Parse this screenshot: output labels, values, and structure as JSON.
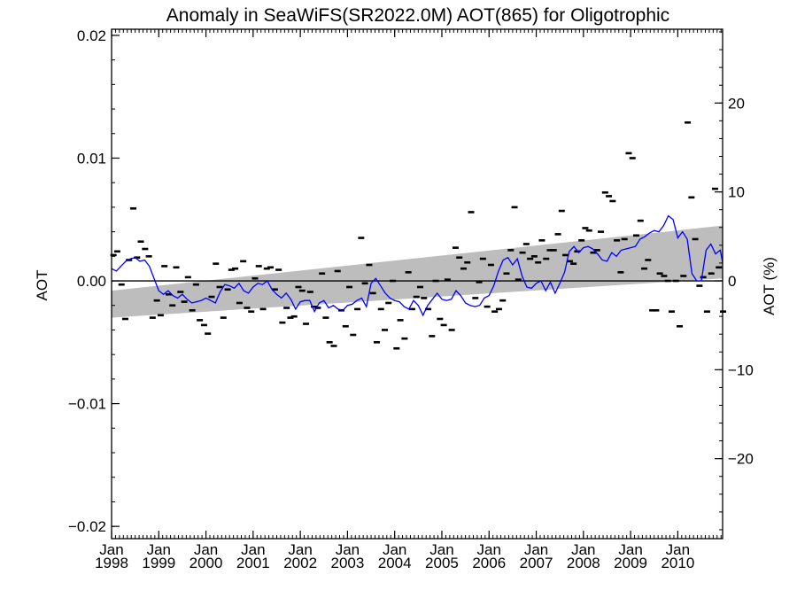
{
  "chart_data": {
    "type": "scatter",
    "title": "Anomaly in SeaWiFS(SR2022.0M) AOT(865) for Oligotrophic",
    "ylabel": "AOT",
    "y2label": "AOT (%)",
    "xlim": [
      1998.0,
      2010.95
    ],
    "ylim": [
      -0.021,
      0.0205
    ],
    "y2lim": [
      -29,
      28.3
    ],
    "x_ticks": [
      {
        "x": 1998,
        "month": "Jan",
        "year": "1998"
      },
      {
        "x": 1999,
        "month": "Jan",
        "year": "1999"
      },
      {
        "x": 2000,
        "month": "Jan",
        "year": "2000"
      },
      {
        "x": 2001,
        "month": "Jan",
        "year": "2001"
      },
      {
        "x": 2002,
        "month": "Jan",
        "year": "2002"
      },
      {
        "x": 2003,
        "month": "Jan",
        "year": "2003"
      },
      {
        "x": 2004,
        "month": "Jan",
        "year": "2004"
      },
      {
        "x": 2005,
        "month": "Jan",
        "year": "2005"
      },
      {
        "x": 2006,
        "month": "Jan",
        "year": "2006"
      },
      {
        "x": 2007,
        "month": "Jan",
        "year": "2007"
      },
      {
        "x": 2008,
        "month": "Jan",
        "year": "2008"
      },
      {
        "x": 2009,
        "month": "Jan",
        "year": "2009"
      },
      {
        "x": 2010,
        "month": "Jan",
        "year": "2010"
      }
    ],
    "y_ticks": [
      {
        "v": 0.02,
        "label": "0.02"
      },
      {
        "v": 0.01,
        "label": "0.01"
      },
      {
        "v": 0.0,
        "label": "0.00"
      },
      {
        "v": -0.01,
        "label": "−0.01"
      },
      {
        "v": -0.02,
        "label": "−0.02"
      }
    ],
    "y2_ticks": [
      {
        "v": 20,
        "label": "20"
      },
      {
        "v": 10,
        "label": "10"
      },
      {
        "v": 0,
        "label": "0"
      },
      {
        "v": -10,
        "label": "−10"
      },
      {
        "v": -20,
        "label": "−20"
      }
    ],
    "trend_band": {
      "x": [
        1998.0,
        2010.95
      ],
      "upper": [
        -0.0008,
        0.0045
      ],
      "lower": [
        -0.003,
        0.0002
      ]
    },
    "zero_line": 0.0,
    "points": [
      [
        1998.04,
        0.0021
      ],
      [
        1998.12,
        0.0024
      ],
      [
        1998.21,
        -0.0003
      ],
      [
        1998.29,
        -0.0031
      ],
      [
        1998.37,
        0.0017
      ],
      [
        1998.46,
        0.0059
      ],
      [
        1998.54,
        0.0019
      ],
      [
        1998.62,
        0.0032
      ],
      [
        1998.71,
        0.0026
      ],
      [
        1998.79,
        0.002
      ],
      [
        1998.87,
        -0.003
      ],
      [
        1998.96,
        -0.0016
      ],
      [
        1999.04,
        -0.0028
      ],
      [
        1999.12,
        0.0012
      ],
      [
        1999.21,
        -0.0011
      ],
      [
        1999.29,
        -0.002
      ],
      [
        1999.37,
        0.0011
      ],
      [
        1999.46,
        -0.0009
      ],
      [
        1999.54,
        -0.0017
      ],
      [
        1999.62,
        0.0003
      ],
      [
        1999.71,
        -0.0024
      ],
      [
        1999.79,
        -0.0003
      ],
      [
        1999.87,
        -0.0032
      ],
      [
        1999.96,
        -0.0036
      ],
      [
        2000.04,
        -0.0043
      ],
      [
        2000.12,
        -0.0013
      ],
      [
        2000.21,
        0.0014
      ],
      [
        2000.29,
        -0.0005
      ],
      [
        2000.37,
        -0.003
      ],
      [
        2000.46,
        -0.0007
      ],
      [
        2000.54,
        0.0009
      ],
      [
        2000.62,
        0.001
      ],
      [
        2000.71,
        -0.0018
      ],
      [
        2000.79,
        0.0016
      ],
      [
        2000.87,
        -0.0022
      ],
      [
        2000.96,
        -0.0025
      ],
      [
        2001.04,
        0.0002
      ],
      [
        2001.12,
        0.0012
      ],
      [
        2001.21,
        -0.0023
      ],
      [
        2001.29,
        0.001
      ],
      [
        2001.37,
        0.0011
      ],
      [
        2001.46,
        -0.0007
      ],
      [
        2001.54,
        0.0009
      ],
      [
        2001.62,
        -0.0034
      ],
      [
        2001.71,
        -0.0022
      ],
      [
        2001.79,
        -0.003
      ],
      [
        2001.87,
        -0.0029
      ],
      [
        2001.96,
        -0.0005
      ],
      [
        2002.04,
        -0.0008
      ],
      [
        2002.12,
        -0.0035
      ],
      [
        2002.21,
        -0.0009
      ],
      [
        2002.29,
        -0.0021
      ],
      [
        2002.37,
        -0.0022
      ],
      [
        2002.46,
        0.0006
      ],
      [
        2002.54,
        -0.003
      ],
      [
        2002.62,
        -0.005
      ],
      [
        2002.71,
        -0.0053
      ],
      [
        2002.79,
        0.0008
      ],
      [
        2002.87,
        -0.0024
      ],
      [
        2002.96,
        -0.0037
      ],
      [
        2003.04,
        -0.0005
      ],
      [
        2003.12,
        -0.0044
      ],
      [
        2003.21,
        -0.0023
      ],
      [
        2003.29,
        0.0035
      ],
      [
        2003.37,
        -0.0002
      ],
      [
        2003.46,
        0.0013
      ],
      [
        2003.54,
        -0.001
      ],
      [
        2003.62,
        -0.005
      ],
      [
        2003.71,
        -0.0023
      ],
      [
        2003.79,
        -0.004
      ],
      [
        2003.87,
        -0.0018
      ],
      [
        2003.96,
        0.0
      ],
      [
        2004.04,
        -0.0055
      ],
      [
        2004.12,
        -0.0032
      ],
      [
        2004.21,
        -0.0047
      ],
      [
        2004.29,
        0.0007
      ],
      [
        2004.37,
        -0.0023
      ],
      [
        2004.46,
        -0.0013
      ],
      [
        2004.54,
        -0.0005
      ],
      [
        2004.62,
        -0.0014
      ],
      [
        2004.71,
        -0.0023
      ],
      [
        2004.79,
        -0.0045
      ],
      [
        2004.87,
        0.0
      ],
      [
        2004.96,
        -0.0031
      ],
      [
        2005.04,
        -0.0036
      ],
      [
        2005.12,
        0.0001
      ],
      [
        2005.21,
        -0.004
      ],
      [
        2005.29,
        0.0027
      ],
      [
        2005.37,
        0.0019
      ],
      [
        2005.46,
        0.001
      ],
      [
        2005.54,
        0.0015
      ],
      [
        2005.62,
        0.0056
      ],
      [
        2005.71,
        -0.0014
      ],
      [
        2005.79,
        -0.0001
      ],
      [
        2005.87,
        0.0018
      ],
      [
        2005.96,
        -0.0021
      ],
      [
        2006.04,
        0.0013
      ],
      [
        2006.12,
        -0.0025
      ],
      [
        2006.21,
        -0.0023
      ],
      [
        2006.29,
        -0.0016
      ],
      [
        2006.37,
        0.0006
      ],
      [
        2006.46,
        0.0025
      ],
      [
        2006.54,
        0.006
      ],
      [
        2006.62,
        0.0001
      ],
      [
        2006.71,
        0.0023
      ],
      [
        2006.79,
        0.003
      ],
      [
        2006.87,
        0.0018
      ],
      [
        2006.96,
        0.002
      ],
      [
        2007.04,
        0.0015
      ],
      [
        2007.12,
        0.0033
      ],
      [
        2007.21,
        0.0018
      ],
      [
        2007.29,
        0.0025
      ],
      [
        2007.37,
        0.0025
      ],
      [
        2007.46,
        0.0038
      ],
      [
        2007.54,
        0.0057
      ],
      [
        2007.62,
        0.0021
      ],
      [
        2007.71,
        0.0016
      ],
      [
        2007.79,
        0.0014
      ],
      [
        2007.87,
        0.0024
      ],
      [
        2007.96,
        0.0033
      ],
      [
        2008.04,
        0.0043
      ],
      [
        2008.12,
        0.0041
      ],
      [
        2008.21,
        0.0023
      ],
      [
        2008.29,
        0.0025
      ],
      [
        2008.37,
        0.004
      ],
      [
        2008.46,
        0.0072
      ],
      [
        2008.54,
        0.0069
      ],
      [
        2008.62,
        0.0065
      ],
      [
        2008.71,
        0.0033
      ],
      [
        2008.79,
        0.0007
      ],
      [
        2008.87,
        0.0034
      ],
      [
        2008.96,
        0.0104
      ],
      [
        2009.04,
        0.01
      ],
      [
        2009.12,
        0.0037
      ],
      [
        2009.21,
        0.0049
      ],
      [
        2009.29,
        0.001
      ],
      [
        2009.37,
        0.0017
      ],
      [
        2009.46,
        -0.0024
      ],
      [
        2009.54,
        -0.0024
      ],
      [
        2009.62,
        0.0006
      ],
      [
        2009.71,
        0.0004
      ],
      [
        2009.79,
        0.0
      ],
      [
        2009.87,
        -0.0025
      ],
      [
        2009.96,
        0.0
      ],
      [
        2010.04,
        -0.0037
      ],
      [
        2010.12,
        0.0004
      ],
      [
        2010.21,
        0.0129
      ],
      [
        2010.29,
        0.0068
      ],
      [
        2010.37,
        0.0034
      ],
      [
        2010.46,
        -0.0004
      ],
      [
        2010.54,
        0.0003
      ],
      [
        2010.62,
        -0.0025
      ],
      [
        2010.71,
        0.0006
      ],
      [
        2010.79,
        0.0075
      ],
      [
        2010.87,
        0.0011
      ],
      [
        2010.96,
        -0.0025
      ]
    ],
    "running_mean": {
      "color": "#0000ff",
      "x": [
        1998.0,
        1998.1,
        1998.2,
        1998.3,
        1998.4,
        1998.5,
        1998.6,
        1998.7,
        1998.8,
        1998.9,
        1999.0,
        1999.1,
        1999.2,
        1999.3,
        1999.4,
        1999.5,
        1999.6,
        1999.7,
        1999.8,
        1999.9,
        2000.0,
        2000.1,
        2000.2,
        2000.3,
        2000.4,
        2000.5,
        2000.6,
        2000.7,
        2000.8,
        2000.9,
        2001.0,
        2001.1,
        2001.2,
        2001.3,
        2001.4,
        2001.5,
        2001.6,
        2001.7,
        2001.8,
        2001.9,
        2002.0,
        2002.1,
        2002.2,
        2002.3,
        2002.4,
        2002.5,
        2002.6,
        2002.7,
        2002.8,
        2002.9,
        2003.0,
        2003.1,
        2003.2,
        2003.3,
        2003.4,
        2003.5,
        2003.6,
        2003.7,
        2003.8,
        2003.9,
        2004.0,
        2004.1,
        2004.2,
        2004.3,
        2004.4,
        2004.5,
        2004.6,
        2004.7,
        2004.8,
        2004.9,
        2005.0,
        2005.1,
        2005.2,
        2005.3,
        2005.4,
        2005.5,
        2005.6,
        2005.7,
        2005.8,
        2005.9,
        2006.0,
        2006.1,
        2006.2,
        2006.3,
        2006.4,
        2006.5,
        2006.6,
        2006.7,
        2006.8,
        2006.9,
        2007.0,
        2007.1,
        2007.2,
        2007.3,
        2007.4,
        2007.5,
        2007.6,
        2007.7,
        2007.8,
        2007.9,
        2008.0,
        2008.1,
        2008.2,
        2008.3,
        2008.4,
        2008.5,
        2008.6,
        2008.7,
        2008.8,
        2008.9,
        2009.0,
        2009.1,
        2009.2,
        2009.3,
        2009.4,
        2009.5,
        2009.6,
        2009.7,
        2009.8,
        2009.9,
        2010.0,
        2010.1,
        2010.2,
        2010.3,
        2010.4,
        2010.5,
        2010.6,
        2010.7,
        2010.8,
        2010.9,
        2010.95
      ],
      "y": [
        0.001,
        0.0008,
        0.0012,
        0.0016,
        0.0018,
        0.0019,
        0.0016,
        0.0017,
        0.0012,
        0.0002,
        -0.0008,
        -0.0011,
        -0.0008,
        -0.0012,
        -0.0014,
        -0.0011,
        -0.0015,
        -0.0018,
        -0.0017,
        -0.0016,
        -0.0014,
        -0.0016,
        -0.0018,
        -0.0009,
        -0.0003,
        -0.0004,
        -0.0006,
        -0.0002,
        -0.0008,
        -0.001,
        -0.0005,
        -0.0002,
        -0.0003,
        0.0,
        -0.0007,
        -0.0011,
        -0.0014,
        -0.001,
        -0.0015,
        -0.0023,
        -0.0017,
        -0.0016,
        -0.0016,
        -0.0025,
        -0.0018,
        -0.0016,
        -0.0022,
        -0.002,
        -0.0023,
        -0.0024,
        -0.002,
        -0.0019,
        -0.0016,
        -0.0014,
        -0.0021,
        -0.0002,
        0.0002,
        -0.0004,
        -0.001,
        -0.0014,
        -0.0016,
        -0.0017,
        -0.0021,
        -0.0023,
        -0.0016,
        -0.002,
        -0.0028,
        -0.002,
        -0.0015,
        -0.001,
        -0.0015,
        -0.0016,
        -0.0015,
        -0.0008,
        -0.0012,
        -0.0018,
        -0.002,
        -0.0021,
        -0.002,
        -0.0014,
        -0.0012,
        -0.0004,
        0.0008,
        0.0017,
        0.0019,
        0.0013,
        0.0018,
        0.0004,
        -0.0005,
        -0.0006,
        -0.0002,
        0.0,
        -0.0008,
        -0.0001,
        -0.001,
        -0.0002,
        0.0007,
        0.0024,
        0.0028,
        0.0023,
        0.0027,
        0.0028,
        0.0026,
        0.0022,
        0.0017,
        0.0016,
        0.0023,
        0.002,
        0.0025,
        0.0026,
        0.0027,
        0.0028,
        0.0034,
        0.0036,
        0.0039,
        0.0041,
        0.004,
        0.0045,
        0.0053,
        0.005,
        0.0035,
        0.004,
        0.0034,
        0.0006,
        0.0,
        0.0,
        0.0025,
        0.003,
        0.0022,
        0.0025,
        0.0015
      ],
      "note": ""
    }
  }
}
